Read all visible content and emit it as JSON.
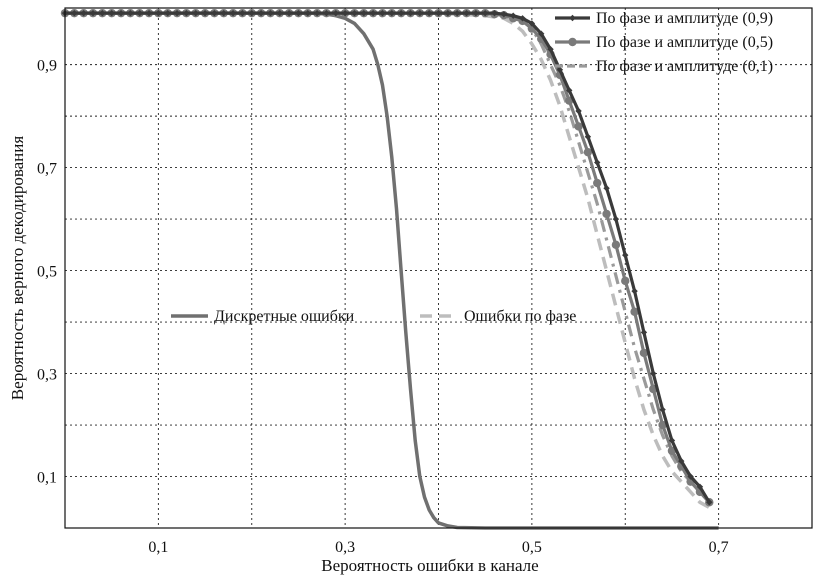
{
  "chart_data": {
    "type": "line",
    "xlabel": "Вероятность ошибки в канале",
    "ylabel": "Вероятность верного декодирования",
    "xlim": [
      0,
      0.8
    ],
    "ylim": [
      0,
      1.01
    ],
    "grid": true,
    "x_ticks": [
      {
        "value": 0.1,
        "label": "0,1"
      },
      {
        "value": 0.3,
        "label": "0,3"
      },
      {
        "value": 0.5,
        "label": "0,5"
      },
      {
        "value": 0.7,
        "label": "0,7"
      }
    ],
    "x_grid": [
      0.1,
      0.2,
      0.3,
      0.4,
      0.5,
      0.6,
      0.7
    ],
    "y_ticks": [
      {
        "value": 0.1,
        "label": "0,1"
      },
      {
        "value": 0.3,
        "label": "0,3"
      },
      {
        "value": 0.5,
        "label": "0,5"
      },
      {
        "value": 0.7,
        "label": "0,7"
      },
      {
        "value": 0.9,
        "label": "0,9"
      }
    ],
    "y_grid": [
      0.1,
      0.2,
      0.3,
      0.4,
      0.5,
      0.6,
      0.7,
      0.8,
      0.9
    ],
    "series": [
      {
        "name": "По фазе и амплитуде (0,9)",
        "color": "#3a3a3a",
        "dash": "solid",
        "marker": "diamond",
        "x": [
          0,
          0.01,
          0.02,
          0.03,
          0.04,
          0.05,
          0.06,
          0.07,
          0.08,
          0.09,
          0.1,
          0.11,
          0.12,
          0.13,
          0.14,
          0.15,
          0.16,
          0.17,
          0.18,
          0.19,
          0.2,
          0.21,
          0.22,
          0.23,
          0.24,
          0.25,
          0.26,
          0.27,
          0.28,
          0.29,
          0.3,
          0.31,
          0.32,
          0.33,
          0.34,
          0.35,
          0.36,
          0.37,
          0.38,
          0.39,
          0.4,
          0.41,
          0.42,
          0.43,
          0.44,
          0.45,
          0.46,
          0.47,
          0.48,
          0.49,
          0.5,
          0.51,
          0.52,
          0.53,
          0.54,
          0.55,
          0.56,
          0.57,
          0.58,
          0.59,
          0.6,
          0.61,
          0.62,
          0.63,
          0.64,
          0.65,
          0.66,
          0.67,
          0.68,
          0.69
        ],
        "y": [
          1,
          1,
          1,
          1,
          1,
          1,
          1,
          1,
          1,
          1,
          1,
          1,
          1,
          1,
          1,
          1,
          1,
          1,
          1,
          1,
          1,
          1,
          1,
          1,
          1,
          1,
          1,
          1,
          1,
          1,
          1,
          1,
          1,
          1,
          1,
          1,
          1,
          1,
          1,
          1,
          1,
          1,
          1,
          1,
          1,
          1,
          1,
          0.998,
          0.995,
          0.99,
          0.98,
          0.96,
          0.93,
          0.89,
          0.85,
          0.81,
          0.76,
          0.71,
          0.66,
          0.6,
          0.53,
          0.46,
          0.38,
          0.3,
          0.23,
          0.17,
          0.13,
          0.1,
          0.08,
          0.05
        ]
      },
      {
        "name": "По фазе и амплитуде (0,5)",
        "color": "#7a7a7a",
        "dash": "solid",
        "marker": "circle",
        "x": [
          0,
          0.01,
          0.02,
          0.03,
          0.04,
          0.05,
          0.06,
          0.07,
          0.08,
          0.09,
          0.1,
          0.11,
          0.12,
          0.13,
          0.14,
          0.15,
          0.16,
          0.17,
          0.18,
          0.19,
          0.2,
          0.21,
          0.22,
          0.23,
          0.24,
          0.25,
          0.26,
          0.27,
          0.28,
          0.29,
          0.3,
          0.31,
          0.32,
          0.33,
          0.34,
          0.35,
          0.36,
          0.37,
          0.38,
          0.39,
          0.4,
          0.41,
          0.42,
          0.43,
          0.44,
          0.45,
          0.46,
          0.47,
          0.48,
          0.49,
          0.5,
          0.51,
          0.52,
          0.53,
          0.54,
          0.55,
          0.56,
          0.57,
          0.58,
          0.59,
          0.6,
          0.61,
          0.62,
          0.63,
          0.64,
          0.65,
          0.66,
          0.67,
          0.68,
          0.69
        ],
        "y": [
          1,
          1,
          1,
          1,
          1,
          1,
          1,
          1,
          1,
          1,
          1,
          1,
          1,
          1,
          1,
          1,
          1,
          1,
          1,
          1,
          1,
          1,
          1,
          1,
          1,
          1,
          1,
          1,
          1,
          1,
          1,
          1,
          1,
          1,
          1,
          1,
          1,
          1,
          1,
          1,
          1,
          1,
          1,
          1,
          1,
          1,
          0.998,
          0.996,
          0.99,
          0.985,
          0.97,
          0.95,
          0.92,
          0.88,
          0.83,
          0.78,
          0.73,
          0.67,
          0.61,
          0.55,
          0.48,
          0.42,
          0.34,
          0.27,
          0.2,
          0.15,
          0.12,
          0.09,
          0.07,
          0.05
        ]
      },
      {
        "name": "По фазе и амплитуде (0,1)",
        "color": "#9a9a9a",
        "dash": "dashdot",
        "marker": "none",
        "x": [
          0,
          0.05,
          0.1,
          0.15,
          0.2,
          0.25,
          0.3,
          0.35,
          0.4,
          0.45,
          0.47,
          0.49,
          0.5,
          0.51,
          0.52,
          0.53,
          0.54,
          0.55,
          0.56,
          0.57,
          0.58,
          0.59,
          0.6,
          0.61,
          0.62,
          0.63,
          0.64,
          0.65,
          0.66,
          0.67,
          0.68,
          0.69
        ],
        "y": [
          1,
          1,
          1,
          1,
          1,
          1,
          1,
          1,
          1,
          1,
          0.995,
          0.985,
          0.97,
          0.94,
          0.9,
          0.86,
          0.81,
          0.75,
          0.69,
          0.63,
          0.56,
          0.49,
          0.42,
          0.35,
          0.29,
          0.23,
          0.18,
          0.14,
          0.11,
          0.09,
          0.07,
          0.05
        ]
      },
      {
        "name": "Дискретные ошибки",
        "color": "#707070",
        "dash": "solid",
        "marker": "none",
        "x": [
          0,
          0.1,
          0.2,
          0.27,
          0.28,
          0.29,
          0.3,
          0.31,
          0.32,
          0.33,
          0.335,
          0.34,
          0.345,
          0.35,
          0.355,
          0.36,
          0.365,
          0.37,
          0.375,
          0.38,
          0.385,
          0.39,
          0.395,
          0.4,
          0.41,
          0.42,
          0.45,
          0.5,
          0.6,
          0.7
        ],
        "y": [
          1,
          1,
          1,
          1,
          0.998,
          0.995,
          0.99,
          0.98,
          0.96,
          0.93,
          0.9,
          0.86,
          0.8,
          0.72,
          0.62,
          0.5,
          0.38,
          0.27,
          0.17,
          0.1,
          0.06,
          0.035,
          0.02,
          0.01,
          0.004,
          0.001,
          0,
          0,
          0,
          0
        ]
      },
      {
        "name": "Ошибки по фазе",
        "color": "#bdbdbd",
        "dash": "dashed",
        "marker": "none",
        "x": [
          0,
          0.1,
          0.2,
          0.3,
          0.4,
          0.45,
          0.47,
          0.48,
          0.49,
          0.5,
          0.51,
          0.52,
          0.53,
          0.54,
          0.55,
          0.56,
          0.57,
          0.58,
          0.59,
          0.6,
          0.61,
          0.62,
          0.63,
          0.64,
          0.65,
          0.66,
          0.67,
          0.68,
          0.69
        ],
        "y": [
          1,
          1,
          1,
          1,
          1,
          0.995,
          0.99,
          0.98,
          0.965,
          0.94,
          0.91,
          0.87,
          0.82,
          0.76,
          0.7,
          0.64,
          0.57,
          0.5,
          0.43,
          0.36,
          0.29,
          0.23,
          0.18,
          0.14,
          0.11,
          0.09,
          0.07,
          0.05,
          0.04
        ]
      }
    ],
    "legend_top_right": [
      {
        "series_index": 0,
        "label": "По фазе и амплитуде (0,9)"
      },
      {
        "series_index": 1,
        "label": "По фазе и амплитуде (0,5)"
      },
      {
        "series_index": 2,
        "label": "По фазе и амплитуде (0,1)"
      }
    ],
    "legend_inline": [
      {
        "series_index": 3,
        "label": "Дискретные ошибки"
      },
      {
        "series_index": 4,
        "label": "Ошибки по фазе"
      }
    ]
  }
}
